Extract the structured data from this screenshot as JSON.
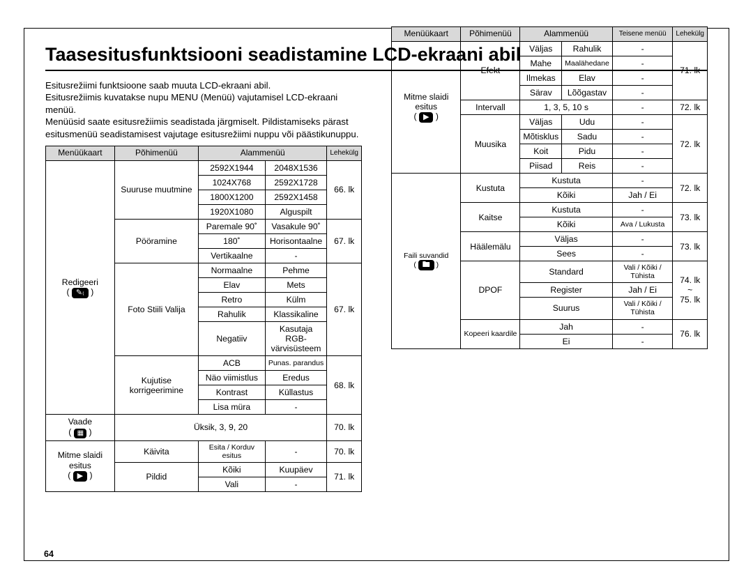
{
  "title": "Taasesitusfunktsiooni seadistamine LCD-ekraani abil",
  "intro": "Esitusrežiimi funktsioone saab muuta LCD-ekraani abil.\nEsitusrežiimis kuvatakse nupu MENU (Menüü) vajutamisel LCD-ekraani menüü.\nMenüüsid saate esitusrežiimis seadistada järgmiselt. Pildistamiseks pärast\nesitusmenüü seadistamisest vajutage esitusrežiimi nuppu või päästikunuppu.",
  "page_number": "64",
  "headersA": [
    "Menüükaart",
    "Põhimenüü",
    "Alammenüü",
    "Lehekülg"
  ],
  "headersB": [
    "Menüükaart",
    "Põhimenüü",
    "Alammenüü",
    "Teisene menüü",
    "Lehekülg"
  ],
  "a": {
    "redigeeri": "Redigeeri",
    "vaade": "Vaade",
    "mse": "Mitme slaidi esitus",
    "suuruse": "Suuruse muutmine",
    "pooramine": "Pööramine",
    "foto": "Foto Stiili Valija",
    "kujutise": "Kujutise korrigeerimine",
    "kaivita": "Käivita",
    "pildid": "Pildid",
    "resize": [
      [
        "2592X1944",
        "2048X1536"
      ],
      [
        "1024X768",
        "2592X1728"
      ],
      [
        "1800X1200",
        "2592X1458"
      ],
      [
        "1920X1080",
        "Alguspilt"
      ]
    ],
    "pg66": "66. lk",
    "rotate": [
      [
        "Paremale 90˚",
        "Vasakule 90˚"
      ],
      [
        "180˚",
        "Horisontaalne"
      ],
      [
        "Vertikaalne",
        "-"
      ]
    ],
    "pg67a": "67. lk",
    "style": [
      [
        "Normaalne",
        "Pehme"
      ],
      [
        "Elav",
        "Mets"
      ],
      [
        "Retro",
        "Külm"
      ],
      [
        "Rahulik",
        "Klassikaline"
      ],
      [
        "Negatiiv",
        "Kasutaja RGB-\nvärvisüsteem"
      ]
    ],
    "pg67b": "67. lk",
    "adjust": [
      [
        "ACB",
        "Punas. parandus"
      ],
      [
        "Näo viimistlus",
        "Eredus"
      ],
      [
        "Kontrast",
        "Küllastus"
      ],
      [
        "Lisa müra",
        "-"
      ]
    ],
    "pg68": "68. lk",
    "vaade_val": "Üksik, 3, 9, 20",
    "pg70a": "70. lk",
    "kaivita_c1": "Esita / Korduv esitus",
    "kaivita_c2": "-",
    "pg70b": "70. lk",
    "pildid_rows": [
      [
        "Kõiki",
        "Kuupäev"
      ],
      [
        "Vali",
        "-"
      ]
    ],
    "pg71": "71. lk"
  },
  "b": {
    "mse": "Mitme slaidi esitus",
    "faili": "Faili suvandid",
    "efekt": "Efekt",
    "intervall": "Intervall",
    "intervall_val": "1, 3, 5, 10 s",
    "intervall_t": "-",
    "muusika": "Muusika",
    "kustuta": "Kustuta",
    "kaitse": "Kaitse",
    "haalemalu": "Häälemälu",
    "dpof": "DPOF",
    "kopeeri": "Kopeeri kaardile",
    "efekt_rows": [
      [
        "Väljas",
        "Rahulik",
        "-"
      ],
      [
        "Mahe",
        "Maalähedane",
        "-"
      ],
      [
        "Ilmekas",
        "Elav",
        "-"
      ],
      [
        "Särav",
        "Lõõgastav",
        "-"
      ]
    ],
    "pg71": "71. lk",
    "pg72a": "72. lk",
    "muusika_rows": [
      [
        "Väljas",
        "Udu",
        "-"
      ],
      [
        "Mõtisklus",
        "Sadu",
        "-"
      ],
      [
        "Koit",
        "Pidu",
        "-"
      ],
      [
        "Piisad",
        "Reis",
        "-"
      ]
    ],
    "pg72b": "72. lk",
    "kustuta_rows": [
      [
        "Kustuta",
        "-"
      ],
      [
        "Kõiki",
        "Jah / Ei"
      ]
    ],
    "pg72c": "72. lk",
    "kaitse_rows": [
      [
        "Kustuta",
        "-"
      ],
      [
        "Kõiki",
        "Ava / Lukusta"
      ]
    ],
    "pg73a": "73. lk",
    "haalemalu_rows": [
      [
        "Väljas",
        "-"
      ],
      [
        "Sees",
        "-"
      ]
    ],
    "pg73b": "73. lk",
    "dpof_rows": [
      [
        "Standard",
        "Vali / Kõiki / Tühista"
      ],
      [
        "Register",
        "Jah / Ei"
      ],
      [
        "Suurus",
        "Vali / Kõiki / Tühista"
      ]
    ],
    "pg7475": "74. lk\n~\n75. lk",
    "kopeeri_rows": [
      [
        "Jah",
        "-"
      ],
      [
        "Ei",
        "-"
      ]
    ],
    "pg76": "76. lk"
  }
}
